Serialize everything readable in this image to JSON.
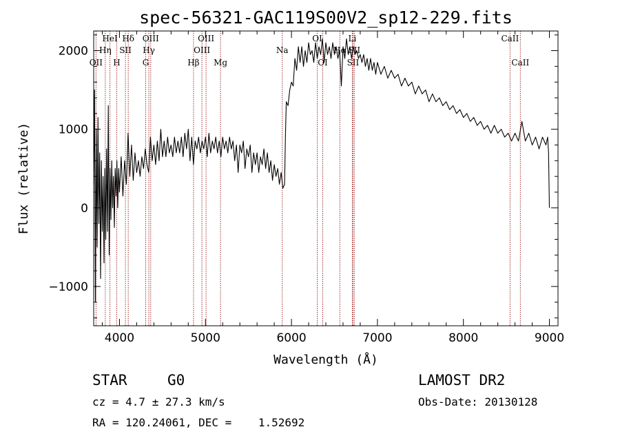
{
  "chart_data": {
    "type": "line",
    "title": "spec-56321-GAC119S00V2_sp12-229.fits",
    "xlabel": "Wavelength (Å)",
    "ylabel": "Flux (relative)",
    "xlim": [
      3700,
      9100
    ],
    "ylim": [
      -1500,
      2250
    ],
    "x_ticks": [
      4000,
      5000,
      6000,
      7000,
      8000,
      9000
    ],
    "y_ticks": [
      -1000,
      0,
      1000,
      2000
    ],
    "x_tick_labels": [
      "4000",
      "5000",
      "6000",
      "7000",
      "8000",
      "9000"
    ],
    "y_tick_labels": [
      "−1000",
      "0",
      "1000",
      "2000"
    ],
    "spectrum": {
      "color": "#000000",
      "points": [
        [
          3700,
          300
        ],
        [
          3710,
          1500
        ],
        [
          3720,
          -1200
        ],
        [
          3730,
          1000
        ],
        [
          3740,
          -500
        ],
        [
          3750,
          1150
        ],
        [
          3760,
          -200
        ],
        [
          3770,
          700
        ],
        [
          3780,
          -900
        ],
        [
          3790,
          600
        ],
        [
          3800,
          -300
        ],
        [
          3810,
          400
        ],
        [
          3820,
          -700
        ],
        [
          3830,
          500
        ],
        [
          3840,
          -400
        ],
        [
          3850,
          750
        ],
        [
          3860,
          -300
        ],
        [
          3870,
          1300
        ],
        [
          3880,
          -600
        ],
        [
          3890,
          500
        ],
        [
          3900,
          -150
        ],
        [
          3910,
          600
        ],
        [
          3920,
          0
        ],
        [
          3930,
          400
        ],
        [
          3940,
          -250
        ],
        [
          3950,
          500
        ],
        [
          3960,
          150
        ],
        [
          3970,
          600
        ],
        [
          3980,
          0
        ],
        [
          3990,
          500
        ],
        [
          4000,
          200
        ],
        [
          4020,
          650
        ],
        [
          4040,
          150
        ],
        [
          4060,
          600
        ],
        [
          4080,
          300
        ],
        [
          4100,
          950
        ],
        [
          4120,
          400
        ],
        [
          4140,
          800
        ],
        [
          4160,
          350
        ],
        [
          4180,
          700
        ],
        [
          4200,
          450
        ],
        [
          4220,
          600
        ],
        [
          4240,
          400
        ],
        [
          4260,
          650
        ],
        [
          4280,
          500
        ],
        [
          4300,
          750
        ],
        [
          4320,
          550
        ],
        [
          4340,
          450
        ],
        [
          4360,
          900
        ],
        [
          4380,
          600
        ],
        [
          4400,
          800
        ],
        [
          4420,
          550
        ],
        [
          4440,
          850
        ],
        [
          4460,
          600
        ],
        [
          4480,
          1000
        ],
        [
          4500,
          650
        ],
        [
          4520,
          850
        ],
        [
          4540,
          650
        ],
        [
          4560,
          900
        ],
        [
          4580,
          700
        ],
        [
          4600,
          800
        ],
        [
          4620,
          650
        ],
        [
          4640,
          900
        ],
        [
          4660,
          700
        ],
        [
          4680,
          850
        ],
        [
          4700,
          700
        ],
        [
          4720,
          900
        ],
        [
          4740,
          650
        ],
        [
          4760,
          950
        ],
        [
          4780,
          750
        ],
        [
          4800,
          1000
        ],
        [
          4820,
          600
        ],
        [
          4840,
          900
        ],
        [
          4860,
          550
        ],
        [
          4880,
          850
        ],
        [
          4900,
          750
        ],
        [
          4920,
          900
        ],
        [
          4940,
          700
        ],
        [
          4960,
          850
        ],
        [
          4980,
          750
        ],
        [
          5000,
          900
        ],
        [
          5020,
          650
        ],
        [
          5040,
          950
        ],
        [
          5060,
          700
        ],
        [
          5080,
          850
        ],
        [
          5100,
          750
        ],
        [
          5120,
          900
        ],
        [
          5140,
          700
        ],
        [
          5160,
          850
        ],
        [
          5180,
          650
        ],
        [
          5200,
          900
        ],
        [
          5220,
          750
        ],
        [
          5240,
          850
        ],
        [
          5260,
          700
        ],
        [
          5280,
          900
        ],
        [
          5300,
          750
        ],
        [
          5320,
          850
        ],
        [
          5340,
          600
        ],
        [
          5360,
          800
        ],
        [
          5380,
          450
        ],
        [
          5400,
          800
        ],
        [
          5420,
          700
        ],
        [
          5440,
          850
        ],
        [
          5460,
          500
        ],
        [
          5480,
          750
        ],
        [
          5500,
          650
        ],
        [
          5520,
          800
        ],
        [
          5540,
          450
        ],
        [
          5560,
          700
        ],
        [
          5580,
          550
        ],
        [
          5600,
          700
        ],
        [
          5620,
          450
        ],
        [
          5640,
          650
        ],
        [
          5660,
          550
        ],
        [
          5680,
          750
        ],
        [
          5700,
          500
        ],
        [
          5720,
          700
        ],
        [
          5740,
          450
        ],
        [
          5760,
          600
        ],
        [
          5780,
          350
        ],
        [
          5800,
          550
        ],
        [
          5820,
          400
        ],
        [
          5840,
          500
        ],
        [
          5860,
          300
        ],
        [
          5880,
          450
        ],
        [
          5900,
          250
        ],
        [
          5920,
          300
        ],
        [
          5930,
          900
        ],
        [
          5940,
          1350
        ],
        [
          5960,
          1300
        ],
        [
          5980,
          1500
        ],
        [
          6000,
          1600
        ],
        [
          6020,
          1550
        ],
        [
          6040,
          1900
        ],
        [
          6060,
          1750
        ],
        [
          6080,
          2050
        ],
        [
          6100,
          1850
        ],
        [
          6120,
          2050
        ],
        [
          6140,
          1800
        ],
        [
          6160,
          2000
        ],
        [
          6180,
          1850
        ],
        [
          6200,
          2100
        ],
        [
          6220,
          1950
        ],
        [
          6240,
          2000
        ],
        [
          6260,
          1850
        ],
        [
          6280,
          2100
        ],
        [
          6300,
          1900
        ],
        [
          6320,
          2050
        ],
        [
          6340,
          1950
        ],
        [
          6360,
          2150
        ],
        [
          6380,
          1850
        ],
        [
          6400,
          2100
        ],
        [
          6420,
          1950
        ],
        [
          6440,
          2050
        ],
        [
          6460,
          1900
        ],
        [
          6480,
          2100
        ],
        [
          6500,
          1950
        ],
        [
          6520,
          2050
        ],
        [
          6540,
          1900
        ],
        [
          6560,
          2000
        ],
        [
          6580,
          1550
        ],
        [
          6600,
          2050
        ],
        [
          6620,
          1900
        ],
        [
          6640,
          2150
        ],
        [
          6660,
          1950
        ],
        [
          6680,
          2050
        ],
        [
          6700,
          1900
        ],
        [
          6720,
          2050
        ],
        [
          6740,
          1950
        ],
        [
          6760,
          2000
        ],
        [
          6780,
          1900
        ],
        [
          6800,
          1950
        ],
        [
          6820,
          1850
        ],
        [
          6840,
          1950
        ],
        [
          6860,
          1800
        ],
        [
          6880,
          1900
        ],
        [
          6900,
          1750
        ],
        [
          6920,
          1900
        ],
        [
          6940,
          1750
        ],
        [
          6960,
          1850
        ],
        [
          6980,
          1700
        ],
        [
          7000,
          1850
        ],
        [
          7040,
          1700
        ],
        [
          7080,
          1800
        ],
        [
          7120,
          1650
        ],
        [
          7160,
          1750
        ],
        [
          7200,
          1650
        ],
        [
          7240,
          1700
        ],
        [
          7280,
          1550
        ],
        [
          7320,
          1650
        ],
        [
          7360,
          1550
        ],
        [
          7400,
          1600
        ],
        [
          7440,
          1450
        ],
        [
          7480,
          1550
        ],
        [
          7520,
          1450
        ],
        [
          7560,
          1500
        ],
        [
          7600,
          1350
        ],
        [
          7640,
          1450
        ],
        [
          7680,
          1350
        ],
        [
          7720,
          1400
        ],
        [
          7760,
          1300
        ],
        [
          7800,
          1350
        ],
        [
          7840,
          1250
        ],
        [
          7880,
          1300
        ],
        [
          7920,
          1200
        ],
        [
          7960,
          1250
        ],
        [
          8000,
          1150
        ],
        [
          8040,
          1200
        ],
        [
          8080,
          1100
        ],
        [
          8120,
          1150
        ],
        [
          8160,
          1050
        ],
        [
          8200,
          1100
        ],
        [
          8240,
          1000
        ],
        [
          8280,
          1050
        ],
        [
          8320,
          950
        ],
        [
          8360,
          1050
        ],
        [
          8400,
          950
        ],
        [
          8440,
          1000
        ],
        [
          8480,
          900
        ],
        [
          8520,
          950
        ],
        [
          8560,
          850
        ],
        [
          8600,
          950
        ],
        [
          8640,
          850
        ],
        [
          8680,
          1100
        ],
        [
          8720,
          850
        ],
        [
          8760,
          950
        ],
        [
          8800,
          800
        ],
        [
          8840,
          900
        ],
        [
          8880,
          750
        ],
        [
          8920,
          900
        ],
        [
          8960,
          800
        ],
        [
          8980,
          900
        ],
        [
          8990,
          700
        ],
        [
          9000,
          0
        ]
      ]
    },
    "spectral_lines": [
      {
        "label": "OII",
        "x": 3727,
        "row": 3
      },
      {
        "label": "Hη",
        "x": 3835,
        "row": 2
      },
      {
        "label": "HeI",
        "x": 3889,
        "row": 1
      },
      {
        "label": "H",
        "x": 3968,
        "row": 3
      },
      {
        "label": "SII",
        "x": 4069,
        "row": 2
      },
      {
        "label": "Hδ",
        "x": 4102,
        "row": 1
      },
      {
        "label": "G",
        "x": 4305,
        "row": 3
      },
      {
        "label": "Hγ",
        "x": 4341,
        "row": 2
      },
      {
        "label": "OIII",
        "x": 4363,
        "row": 1
      },
      {
        "label": "Hβ",
        "x": 4861,
        "row": 3
      },
      {
        "label": "OIII",
        "x": 4959,
        "row": 2
      },
      {
        "label": "OIII",
        "x": 5007,
        "row": 1
      },
      {
        "label": "Mg",
        "x": 5175,
        "row": 3
      },
      {
        "label": "Na",
        "x": 5893,
        "row": 2
      },
      {
        "label": "OI",
        "x": 6300,
        "row": 1
      },
      {
        "label": "OI",
        "x": 6364,
        "row": 3
      },
      {
        "label": "Hα",
        "x": 6563,
        "row": 2
      },
      {
        "label": "Li",
        "x": 6708,
        "row": 1
      },
      {
        "label": "SII",
        "x": 6716,
        "row": 3
      },
      {
        "label": "SII",
        "x": 6731,
        "row": 2
      },
      {
        "label": "CaII",
        "x": 8542,
        "row": 1
      },
      {
        "label": "CaII",
        "x": 8662,
        "row": 3
      }
    ],
    "line_color": "#a03030"
  },
  "info": {
    "object_type": "STAR",
    "subclass": "G0",
    "survey": "LAMOST DR2",
    "redshift": "cz = 4.7 ± 27.3 km/s",
    "obs_date": "Obs-Date: 20130128",
    "coords": "RA = 120.24061, DEC =    1.52692"
  }
}
